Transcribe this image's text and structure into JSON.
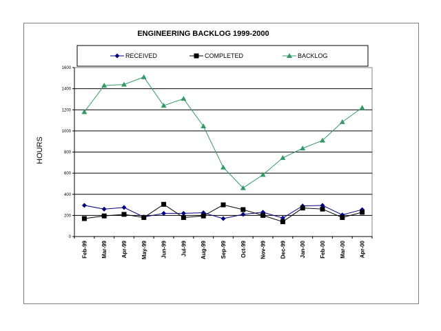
{
  "chart_data": {
    "type": "line",
    "title": "ENGINEERING BACKLOG 1999-2000",
    "ylabel": "HOURS",
    "xlabel": "",
    "ylim": [
      0,
      1600
    ],
    "yticks": [
      "0",
      "200",
      "400",
      "600",
      "800",
      "1000",
      "1200",
      "1400",
      "1600"
    ],
    "grid": true,
    "legend_position": "top",
    "categories": [
      "Feb-99",
      "Mar-99",
      "Apr-99",
      "May-99",
      "Jun-99",
      "Jul-99",
      "Aug-99",
      "Sep-99",
      "Oct-99",
      "Nov-99",
      "Dec-99",
      "Jan-00",
      "Feb-00",
      "Mar-00",
      "Apr-00"
    ],
    "series": [
      {
        "name": "RECEIVED",
        "color": "#000080",
        "marker": "diamond",
        "values": [
          295,
          260,
          275,
          185,
          220,
          220,
          225,
          170,
          210,
          230,
          175,
          290,
          295,
          205,
          255
        ]
      },
      {
        "name": "COMPLETED",
        "color": "#000000",
        "marker": "square",
        "values": [
          170,
          195,
          210,
          180,
          305,
          180,
          195,
          300,
          255,
          200,
          140,
          270,
          260,
          180,
          230
        ]
      },
      {
        "name": "BACKLOG",
        "color": "#339966",
        "marker": "triangle",
        "values": [
          1180,
          1430,
          1440,
          1510,
          1240,
          1305,
          1045,
          655,
          460,
          585,
          745,
          835,
          910,
          1085,
          1220
        ]
      }
    ]
  }
}
